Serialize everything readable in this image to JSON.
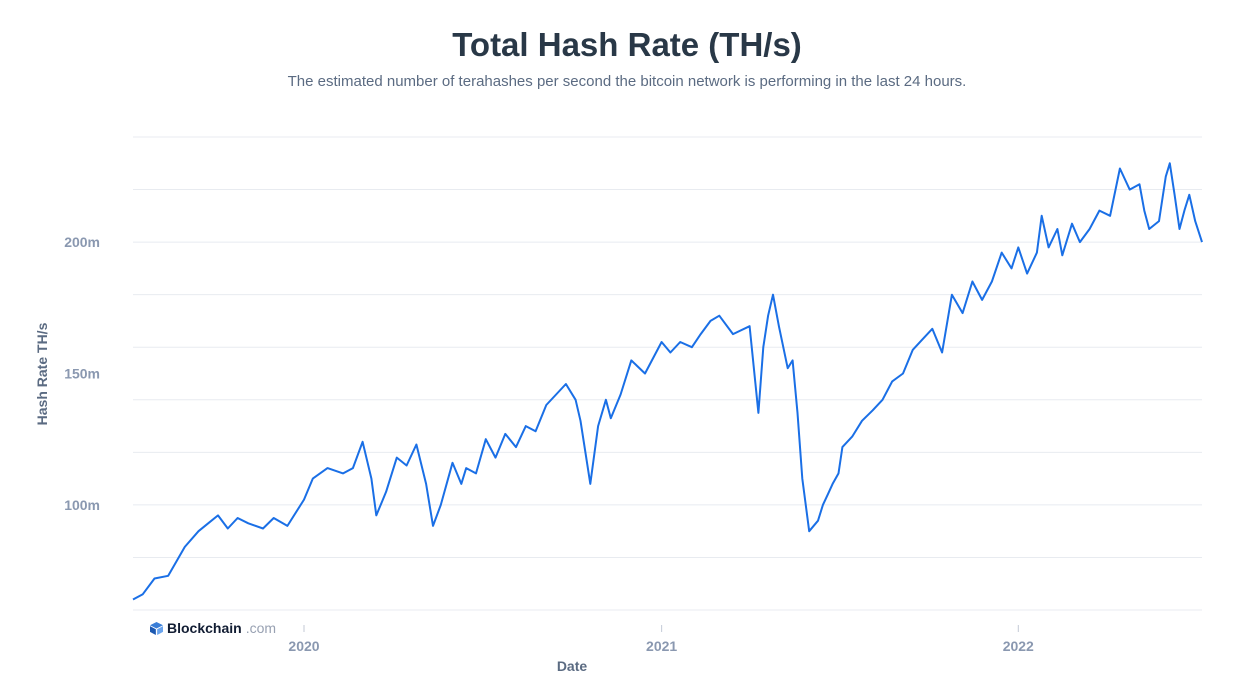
{
  "header": {
    "title": "Total Hash Rate (TH/s)",
    "subtitle": "The estimated number of terahashes per second the bitcoin network is performing in the last 24 hours."
  },
  "brand": {
    "name": "Blockchain",
    "domain": ".com",
    "icon": "blockchain-logo-icon"
  },
  "colors": {
    "line": "#1a6fe6",
    "grid": "#e8ebf0",
    "tick": "#8a98b0",
    "title": "#293847"
  },
  "chart_data": {
    "type": "line",
    "title": "Total Hash Rate (TH/s)",
    "xlabel": "Date",
    "ylabel": "Hash Rate TH/s",
    "xlim": [
      "2019-07-10",
      "2022-07-08"
    ],
    "ylim": [
      60000000,
      240000000
    ],
    "y_gridlines": [
      60000000,
      80000000,
      100000000,
      120000000,
      140000000,
      160000000,
      180000000,
      200000000,
      220000000,
      240000000
    ],
    "y_ticks": [
      {
        "value": 100000000,
        "label": "100m"
      },
      {
        "value": 150000000,
        "label": "150m"
      },
      {
        "value": 200000000,
        "label": "200m"
      }
    ],
    "x_ticks": [
      {
        "value": "2020-01-01",
        "label": "2020"
      },
      {
        "value": "2021-01-01",
        "label": "2021"
      },
      {
        "value": "2022-01-01",
        "label": "2022"
      }
    ],
    "grid": true,
    "legend": "none",
    "series": [
      {
        "x": [
          "2019-07-10",
          "2019-07-20",
          "2019-08-01",
          "2019-08-15",
          "2019-09-01",
          "2019-09-15",
          "2019-09-25",
          "2019-10-05",
          "2019-10-15",
          "2019-10-25",
          "2019-11-05",
          "2019-11-20",
          "2019-12-01",
          "2019-12-15",
          "2020-01-01",
          "2020-01-10",
          "2020-01-25",
          "2020-02-10",
          "2020-02-20",
          "2020-03-01",
          "2020-03-10",
          "2020-03-15",
          "2020-03-25",
          "2020-04-05",
          "2020-04-15",
          "2020-04-25",
          "2020-05-05",
          "2020-05-12",
          "2020-05-20",
          "2020-06-01",
          "2020-06-10",
          "2020-06-15",
          "2020-06-25",
          "2020-07-05",
          "2020-07-15",
          "2020-07-25",
          "2020-08-05",
          "2020-08-15",
          "2020-08-25",
          "2020-09-05",
          "2020-09-15",
          "2020-09-25",
          "2020-10-05",
          "2020-10-10",
          "2020-10-15",
          "2020-10-20",
          "2020-10-28",
          "2020-11-05",
          "2020-11-10",
          "2020-11-20",
          "2020-12-01",
          "2020-12-15",
          "2021-01-01",
          "2021-01-10",
          "2021-01-20",
          "2021-02-01",
          "2021-02-10",
          "2021-02-20",
          "2021-03-01",
          "2021-03-15",
          "2021-04-01",
          "2021-04-10",
          "2021-04-15",
          "2021-04-20",
          "2021-04-25",
          "2021-05-01",
          "2021-05-10",
          "2021-05-15",
          "2021-05-20",
          "2021-05-25",
          "2021-06-01",
          "2021-06-10",
          "2021-06-15",
          "2021-06-20",
          "2021-06-25",
          "2021-07-01",
          "2021-07-05",
          "2021-07-15",
          "2021-07-25",
          "2021-08-05",
          "2021-08-15",
          "2021-08-25",
          "2021-09-05",
          "2021-09-15",
          "2021-09-25",
          "2021-10-05",
          "2021-10-15",
          "2021-10-25",
          "2021-11-05",
          "2021-11-15",
          "2021-11-25",
          "2021-12-05",
          "2021-12-15",
          "2021-12-25",
          "2022-01-01",
          "2022-01-10",
          "2022-01-20",
          "2022-01-25",
          "2022-02-01",
          "2022-02-10",
          "2022-02-15",
          "2022-02-25",
          "2022-03-05",
          "2022-03-15",
          "2022-03-25",
          "2022-04-05",
          "2022-04-15",
          "2022-04-25",
          "2022-05-05",
          "2022-05-10",
          "2022-05-15",
          "2022-05-25",
          "2022-06-01",
          "2022-06-05",
          "2022-06-10",
          "2022-06-15",
          "2022-06-20",
          "2022-06-25",
          "2022-07-01",
          "2022-07-08"
        ],
        "values": [
          64000000,
          66000000,
          72000000,
          73000000,
          84000000,
          90000000,
          93000000,
          96000000,
          91000000,
          95000000,
          93000000,
          91000000,
          95000000,
          92000000,
          102000000,
          110000000,
          114000000,
          112000000,
          114000000,
          124000000,
          110000000,
          96000000,
          105000000,
          118000000,
          115000000,
          123000000,
          108000000,
          92000000,
          100000000,
          116000000,
          108000000,
          114000000,
          112000000,
          125000000,
          118000000,
          127000000,
          122000000,
          130000000,
          128000000,
          138000000,
          142000000,
          146000000,
          140000000,
          132000000,
          120000000,
          108000000,
          130000000,
          140000000,
          133000000,
          142000000,
          155000000,
          150000000,
          162000000,
          158000000,
          162000000,
          160000000,
          165000000,
          170000000,
          172000000,
          165000000,
          168000000,
          135000000,
          160000000,
          172000000,
          180000000,
          168000000,
          152000000,
          155000000,
          135000000,
          110000000,
          90000000,
          94000000,
          100000000,
          104000000,
          108000000,
          112000000,
          122000000,
          126000000,
          132000000,
          136000000,
          140000000,
          147000000,
          150000000,
          159000000,
          163000000,
          167000000,
          158000000,
          180000000,
          173000000,
          185000000,
          178000000,
          185000000,
          196000000,
          190000000,
          198000000,
          188000000,
          196000000,
          210000000,
          198000000,
          205000000,
          195000000,
          207000000,
          200000000,
          205000000,
          212000000,
          210000000,
          228000000,
          220000000,
          222000000,
          212000000,
          205000000,
          208000000,
          225000000,
          230000000,
          218000000,
          205000000,
          212000000,
          218000000,
          208000000,
          200000000
        ]
      }
    ]
  }
}
